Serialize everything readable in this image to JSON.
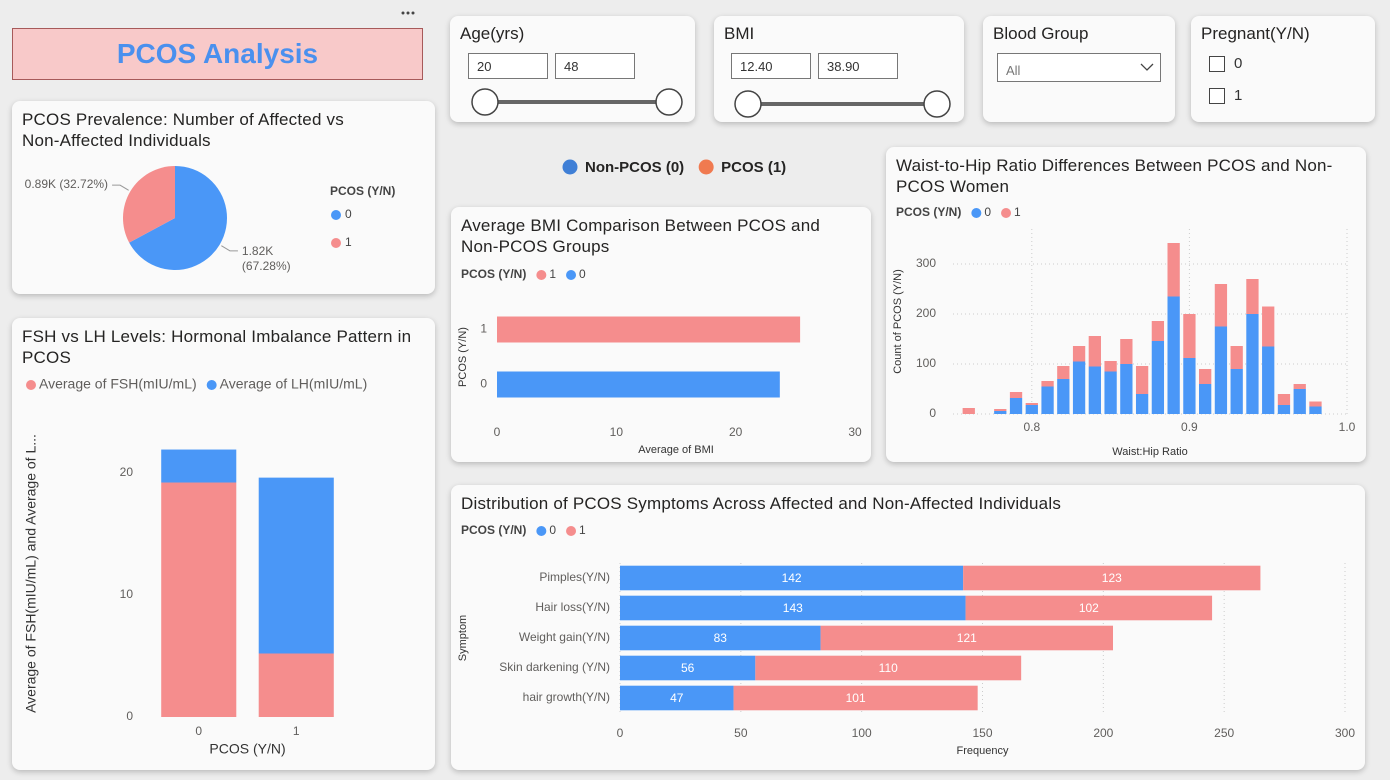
{
  "header": {
    "title": "PCOS Analysis"
  },
  "filters": [
    {
      "label": "Age(yrs)",
      "min": "20",
      "max": "48"
    },
    {
      "label": "BMI",
      "min": "12.40",
      "max": "38.90"
    },
    {
      "label": "Blood Group",
      "value": "All"
    },
    {
      "label": "Pregnant(Y/N)",
      "options": [
        "0",
        "1"
      ]
    }
  ],
  "page_legend": [
    {
      "name": "Non-PCOS (0)",
      "color": "#3f7fd6"
    },
    {
      "name": "PCOS (1)",
      "color": "#f07a50"
    }
  ],
  "chart_data": [
    {
      "type": "pie",
      "title": "PCOS Prevalence: Number of Affected vs Non-Affected Individuals",
      "legend_title": "PCOS (Y/N)",
      "categories": [
        "0",
        "1"
      ],
      "values": [
        1820,
        890
      ],
      "value_labels": [
        "1.82K (67.28%)",
        "0.89K (32.72%)"
      ],
      "colors": [
        "#4a97f7",
        "#f58d8d"
      ]
    },
    {
      "type": "bar",
      "stacked": true,
      "title": "FSH vs LH Levels: Hormonal Imbalance Pattern in PCOS",
      "categories": [
        "0",
        "1"
      ],
      "series": [
        {
          "name": "Average of FSH(mIU/mL)",
          "color": "#f58d8d",
          "values": [
            19.2,
            5.2
          ]
        },
        {
          "name": "Average of LH(mIU/mL)",
          "color": "#4a97f7",
          "values": [
            2.7,
            14.4
          ]
        }
      ],
      "xlabel": "PCOS (Y/N)",
      "ylabel": "Average of FSH(mIU/mL) and Average of L...",
      "ylim": [
        0,
        23.5
      ],
      "yticks": [
        0,
        10,
        20
      ],
      "grid": false
    },
    {
      "type": "bar",
      "orientation": "horizontal",
      "title": "Average BMI Comparison Between PCOS and Non-PCOS Groups",
      "legend_title": "PCOS (Y/N)",
      "categories": [
        "1",
        "0"
      ],
      "values": [
        25.4,
        23.7
      ],
      "colors": [
        "#f58d8d",
        "#4a97f7"
      ],
      "xlabel": "Average of BMI",
      "ylabel": "PCOS (Y/N)",
      "xlim": [
        0,
        30
      ],
      "xticks": [
        0,
        10,
        20,
        30
      ],
      "grid": false
    },
    {
      "type": "bar",
      "stacked": true,
      "title": "Waist-to-Hip Ratio Differences Between PCOS and Non-PCOS Women",
      "legend_title": "PCOS (Y/N)",
      "x": [
        0.76,
        0.78,
        0.79,
        0.8,
        0.81,
        0.82,
        0.83,
        0.84,
        0.85,
        0.86,
        0.87,
        0.88,
        0.89,
        0.9,
        0.91,
        0.92,
        0.93,
        0.94,
        0.95,
        0.96,
        0.97,
        0.98
      ],
      "series": [
        {
          "name": "0",
          "color": "#4a97f7",
          "values": [
            0,
            6,
            32,
            18,
            55,
            70,
            105,
            95,
            85,
            100,
            40,
            146,
            235,
            112,
            60,
            175,
            90,
            200,
            135,
            18,
            50,
            15
          ]
        },
        {
          "name": "1",
          "color": "#f58d8d",
          "values": [
            12,
            4,
            12,
            4,
            11,
            26,
            31,
            61,
            21,
            50,
            56,
            40,
            107,
            88,
            30,
            85,
            46,
            70,
            80,
            22,
            10,
            10
          ]
        }
      ],
      "xlabel": "Waist:Hip Ratio",
      "ylabel": "Count of PCOS (Y/N)",
      "xlim": [
        0.75,
        1.0
      ],
      "xticks": [
        0.8,
        0.9,
        {
          "value": 1.0,
          "label": "1.0"
        }
      ],
      "ylim": [
        0,
        370
      ],
      "yticks": [
        0,
        100,
        200,
        300
      ],
      "grid": true
    },
    {
      "type": "bar",
      "orientation": "horizontal",
      "stacked": true,
      "data_labels": true,
      "title": "Distribution of PCOS Symptoms Across Affected and Non-Affected Individuals",
      "legend_title": "PCOS (Y/N)",
      "categories": [
        "Pimples(Y/N)",
        "Hair loss(Y/N)",
        "Weight gain(Y/N)",
        "Skin darkening (Y/N)",
        "hair growth(Y/N)"
      ],
      "series": [
        {
          "name": "0",
          "color": "#4a97f7",
          "values": [
            142,
            143,
            83,
            56,
            47
          ]
        },
        {
          "name": "1",
          "color": "#f58d8d",
          "values": [
            123,
            102,
            121,
            110,
            101
          ]
        }
      ],
      "xlabel": "Frequency",
      "ylabel": "Symptom",
      "xlim": [
        0,
        300
      ],
      "xticks": [
        0,
        50,
        100,
        150,
        200,
        250,
        300
      ],
      "grid": true
    }
  ]
}
